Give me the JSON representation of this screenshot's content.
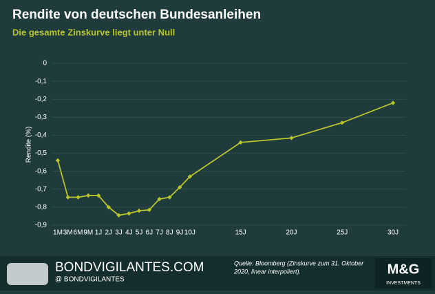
{
  "chart_data": {
    "type": "line",
    "title": "Rendite von deutschen Bundesanleihen",
    "subtitle": "Die gesamte Zinskurve liegt unter Null",
    "y_label": "Rendite (%)",
    "categories": [
      "1M",
      "3M",
      "6M",
      "9M",
      "1J",
      "2J",
      "3J",
      "4J",
      "5J",
      "6J",
      "7J",
      "8J",
      "9J",
      "10J",
      "15J",
      "20J",
      "25J",
      "30J"
    ],
    "series": [
      {
        "name": "Rendite",
        "color": "#b7c52e",
        "values": [
          -0.54,
          -0.745,
          -0.745,
          -0.735,
          -0.735,
          -0.8,
          -0.845,
          -0.835,
          -0.82,
          -0.815,
          -0.755,
          -0.745,
          -0.69,
          -0.63,
          -0.44,
          -0.415,
          -0.33,
          -0.22
        ]
      }
    ],
    "ylim": [
      -0.9,
      0
    ],
    "yticks": [
      0,
      {
        "value": -0.1,
        "label": "-0,1"
      },
      {
        "value": -0.2,
        "label": "-0,2"
      },
      {
        "value": -0.3,
        "label": "-0,3"
      },
      {
        "value": -0.4,
        "label": "-0,4"
      },
      {
        "value": -0.5,
        "label": "-0,5"
      },
      {
        "value": -0.6,
        "label": "-0,6"
      },
      {
        "value": -0.7,
        "label": "-0,7"
      },
      {
        "value": -0.8,
        "label": "-0,8"
      },
      {
        "value": -0.9,
        "label": "-0,9"
      }
    ],
    "grid": true
  },
  "footer": {
    "brand": "BONDVIGILANTES.COM",
    "handle": "@ BONDVIGILANTES",
    "source_1": "Quelle: Bloomberg (Zinskurve zum 31. Oktober",
    "source_2": "2020, linear interpoliert).",
    "logo": "M&G",
    "logo_sub": "INVESTMENTS"
  }
}
